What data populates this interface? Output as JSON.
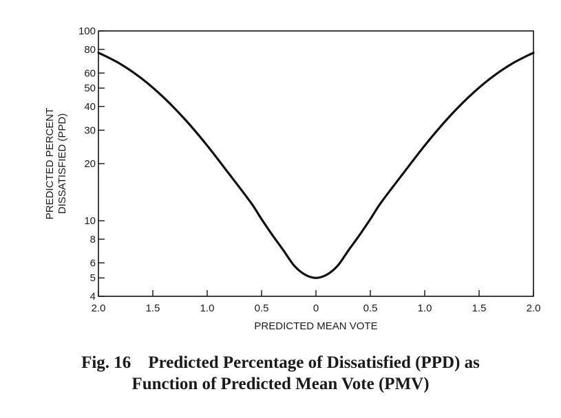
{
  "caption": {
    "line1": "Fig. 16    Predicted Percentage of Dissatisfied (PPD) as",
    "line2": "Function of Predicted Mean Vote (PMV)"
  },
  "chart_data": {
    "type": "line",
    "xlabel": "PREDICTED MEAN VOTE",
    "ylabel_lines": [
      "PREDICTED PERCENT",
      "DISSATISFIED (PPD)"
    ],
    "xlim": [
      -2.0,
      2.0
    ],
    "ylim": [
      4,
      100
    ],
    "yscale": "log",
    "grid": false,
    "x_ticks": [
      {
        "value": -2.0,
        "label": "2.0"
      },
      {
        "value": -1.5,
        "label": "1.5"
      },
      {
        "value": -1.0,
        "label": "1.0"
      },
      {
        "value": -0.5,
        "label": "0.5"
      },
      {
        "value": 0,
        "label": "0"
      },
      {
        "value": 0.5,
        "label": "0.5"
      },
      {
        "value": 1.0,
        "label": "1.0"
      },
      {
        "value": 1.5,
        "label": "1.5"
      },
      {
        "value": 2.0,
        "label": "2.0"
      }
    ],
    "y_ticks": [
      {
        "value": 4,
        "label": "4"
      },
      {
        "value": 5,
        "label": "5"
      },
      {
        "value": 6,
        "label": "6"
      },
      {
        "value": 8,
        "label": "8"
      },
      {
        "value": 10,
        "label": "10"
      },
      {
        "value": 20,
        "label": "20"
      },
      {
        "value": 30,
        "label": "30"
      },
      {
        "value": 40,
        "label": "40"
      },
      {
        "value": 50,
        "label": "50"
      },
      {
        "value": 60,
        "label": "60"
      },
      {
        "value": 80,
        "label": "80"
      },
      {
        "value": 100,
        "label": "100"
      }
    ],
    "series": [
      {
        "x": [
          -2.0,
          -1.8,
          -1.6,
          -1.4,
          -1.2,
          -1.0,
          -0.8,
          -0.6,
          -0.5,
          -0.4,
          -0.3,
          -0.2,
          -0.1,
          0,
          0.1,
          0.2,
          0.3,
          0.4,
          0.5,
          0.6,
          0.8,
          1.0,
          1.2,
          1.4,
          1.6,
          1.8,
          2.0
        ],
        "y": [
          76.8,
          67.1,
          56.0,
          44.6,
          34.0,
          24.9,
          17.7,
          12.5,
          10.2,
          8.4,
          7.0,
          5.8,
          5.2,
          5.0,
          5.2,
          5.8,
          7.0,
          8.4,
          10.2,
          12.5,
          17.7,
          24.9,
          34.0,
          44.6,
          56.0,
          67.1,
          76.8
        ]
      }
    ]
  }
}
